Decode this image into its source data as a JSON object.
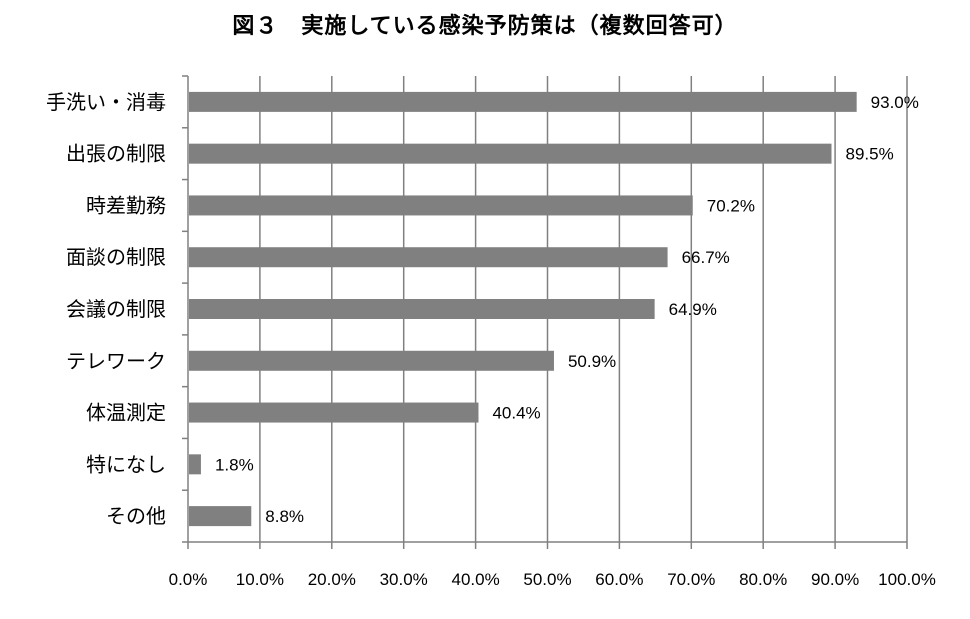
{
  "chart_data": {
    "type": "bar",
    "orientation": "horizontal",
    "title": "図３　実施している感染予防策は（複数回答可）",
    "categories": [
      "手洗い・消毒",
      "出張の制限",
      "時差勤務",
      "面談の制限",
      "会議の制限",
      "テレワーク",
      "体温測定",
      "特になし",
      "その他"
    ],
    "values": [
      93.0,
      89.5,
      70.2,
      66.7,
      64.9,
      50.9,
      40.4,
      1.8,
      8.8
    ],
    "value_labels": [
      "93.0%",
      "89.5%",
      "70.2%",
      "66.7%",
      "64.9%",
      "50.9%",
      "40.4%",
      "1.8%",
      "8.8%"
    ],
    "x_ticks": [
      "0.0%",
      "10.0%",
      "20.0%",
      "30.0%",
      "40.0%",
      "50.0%",
      "60.0%",
      "70.0%",
      "80.0%",
      "90.0%",
      "100.0%"
    ],
    "xlim": [
      0,
      100
    ],
    "xlabel": "",
    "ylabel": "",
    "grid": "vertical",
    "legend": "none",
    "bar_color": "#808080",
    "grid_color": "#808080",
    "axis_color": "#808080"
  }
}
